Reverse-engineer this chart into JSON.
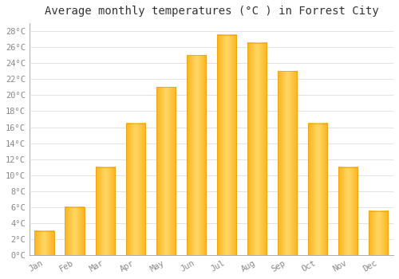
{
  "title": "Average monthly temperatures (°C ) in Forrest City",
  "months": [
    "Jan",
    "Feb",
    "Mar",
    "Apr",
    "May",
    "Jun",
    "Jul",
    "Aug",
    "Sep",
    "Oct",
    "Nov",
    "Dec"
  ],
  "values": [
    3,
    6,
    11,
    16.5,
    21,
    25,
    27.5,
    26.5,
    23,
    16.5,
    11,
    5.5
  ],
  "bar_color_main": "#FBB724",
  "bar_color_edge": "#E8A010",
  "bar_color_light": "#FFD966",
  "background_color": "#FFFFFF",
  "plot_bg_color": "#FFFFFF",
  "grid_color": "#DDDDDD",
  "ylim": [
    0,
    29
  ],
  "yticks": [
    0,
    2,
    4,
    6,
    8,
    10,
    12,
    14,
    16,
    18,
    20,
    22,
    24,
    26,
    28
  ],
  "ytick_labels": [
    "0°C",
    "2°C",
    "4°C",
    "6°C",
    "8°C",
    "10°C",
    "12°C",
    "14°C",
    "16°C",
    "18°C",
    "20°C",
    "22°C",
    "24°C",
    "26°C",
    "28°C"
  ],
  "title_fontsize": 10,
  "tick_fontsize": 7.5,
  "tick_font_color": "#888888",
  "font_family": "monospace",
  "bar_width": 0.65
}
